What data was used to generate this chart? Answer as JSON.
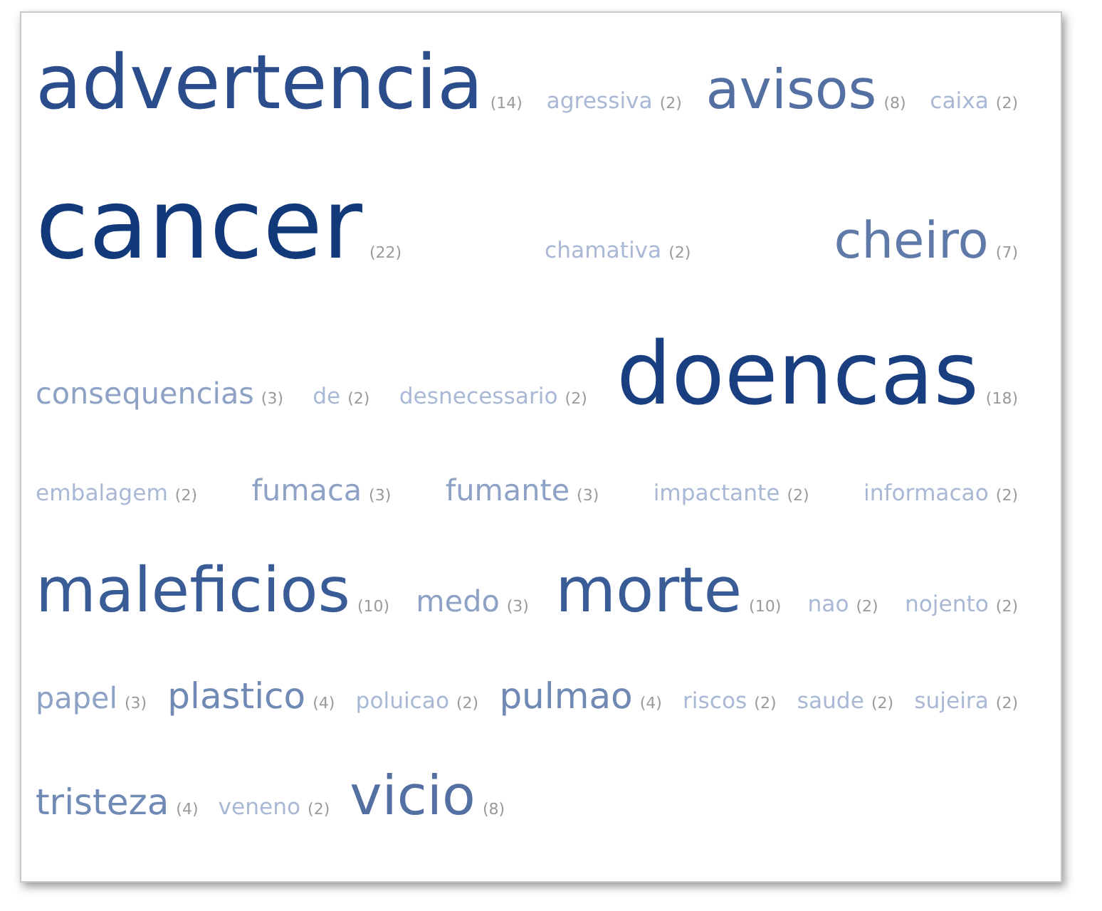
{
  "chart_data": {
    "type": "other",
    "categories": [
      "advertencia",
      "agressiva",
      "avisos",
      "caixa",
      "cancer",
      "chamativa",
      "cheiro",
      "consequencias",
      "de",
      "desnecessario",
      "doencas",
      "embalagem",
      "fumaca",
      "fumante",
      "impactante",
      "informacao",
      "maleficios",
      "medo",
      "morte",
      "nao",
      "nojento",
      "papel",
      "plastico",
      "poluicao",
      "pulmao",
      "riscos",
      "saude",
      "sujeira",
      "tristeza",
      "veneno",
      "vicio"
    ],
    "values": [
      14,
      2,
      8,
      2,
      22,
      2,
      7,
      3,
      2,
      2,
      18,
      2,
      3,
      3,
      2,
      2,
      10,
      3,
      10,
      2,
      2,
      3,
      4,
      2,
      4,
      2,
      2,
      2,
      4,
      2,
      8
    ],
    "value_labels": [
      "(14)",
      "(2)",
      "(8)",
      "(2)",
      "(22)",
      "(2)",
      "(7)",
      "(3)",
      "(2)",
      "(2)",
      "(18)",
      "(2)",
      "(3)",
      "(3)",
      "(2)",
      "(2)",
      "(10)",
      "(3)",
      "(10)",
      "(2)",
      "(2)",
      "(3)",
      "(4)",
      "(2)",
      "(4)",
      "(2)",
      "(2)",
      "(2)",
      "(4)",
      "(2)",
      "(8)"
    ],
    "colors": [
      "#2b4d8c",
      "#a9b8d4",
      "#5470a3",
      "#a9b8d4",
      "#123a7a",
      "#a9b8d4",
      "#5f79a8",
      "#8ea2c6",
      "#a9b8d4",
      "#a9b8d4",
      "#1a3f80",
      "#a9b8d4",
      "#8ea2c6",
      "#8ea2c6",
      "#a9b8d4",
      "#a9b8d4",
      "#3a5c96",
      "#8ea2c6",
      "#3a5c96",
      "#a9b8d4",
      "#a9b8d4",
      "#8ea2c6",
      "#7089b5",
      "#a9b8d4",
      "#7089b5",
      "#a9b8d4",
      "#a9b8d4",
      "#a9b8d4",
      "#7089b5",
      "#a9b8d4",
      "#5470a3"
    ]
  }
}
